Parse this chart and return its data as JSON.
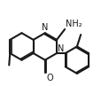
{
  "bg_color": "#ffffff",
  "line_color": "#1a1a1a",
  "line_width": 1.5,
  "font_size": 7,
  "figsize": [
    1.23,
    0.97
  ],
  "dpi": 100,
  "bond_r": 0.115,
  "bx": 0.235,
  "by": 0.5,
  "angles_flat": [
    30,
    90,
    150,
    210,
    270,
    330
  ],
  "benz_double": [
    false,
    false,
    true,
    false,
    true,
    false
  ],
  "tol_double": [
    true,
    false,
    true,
    false,
    true,
    false
  ],
  "N1_label": "N",
  "N3_label": "N",
  "O_label": "O",
  "NH2_label": "NH₂"
}
